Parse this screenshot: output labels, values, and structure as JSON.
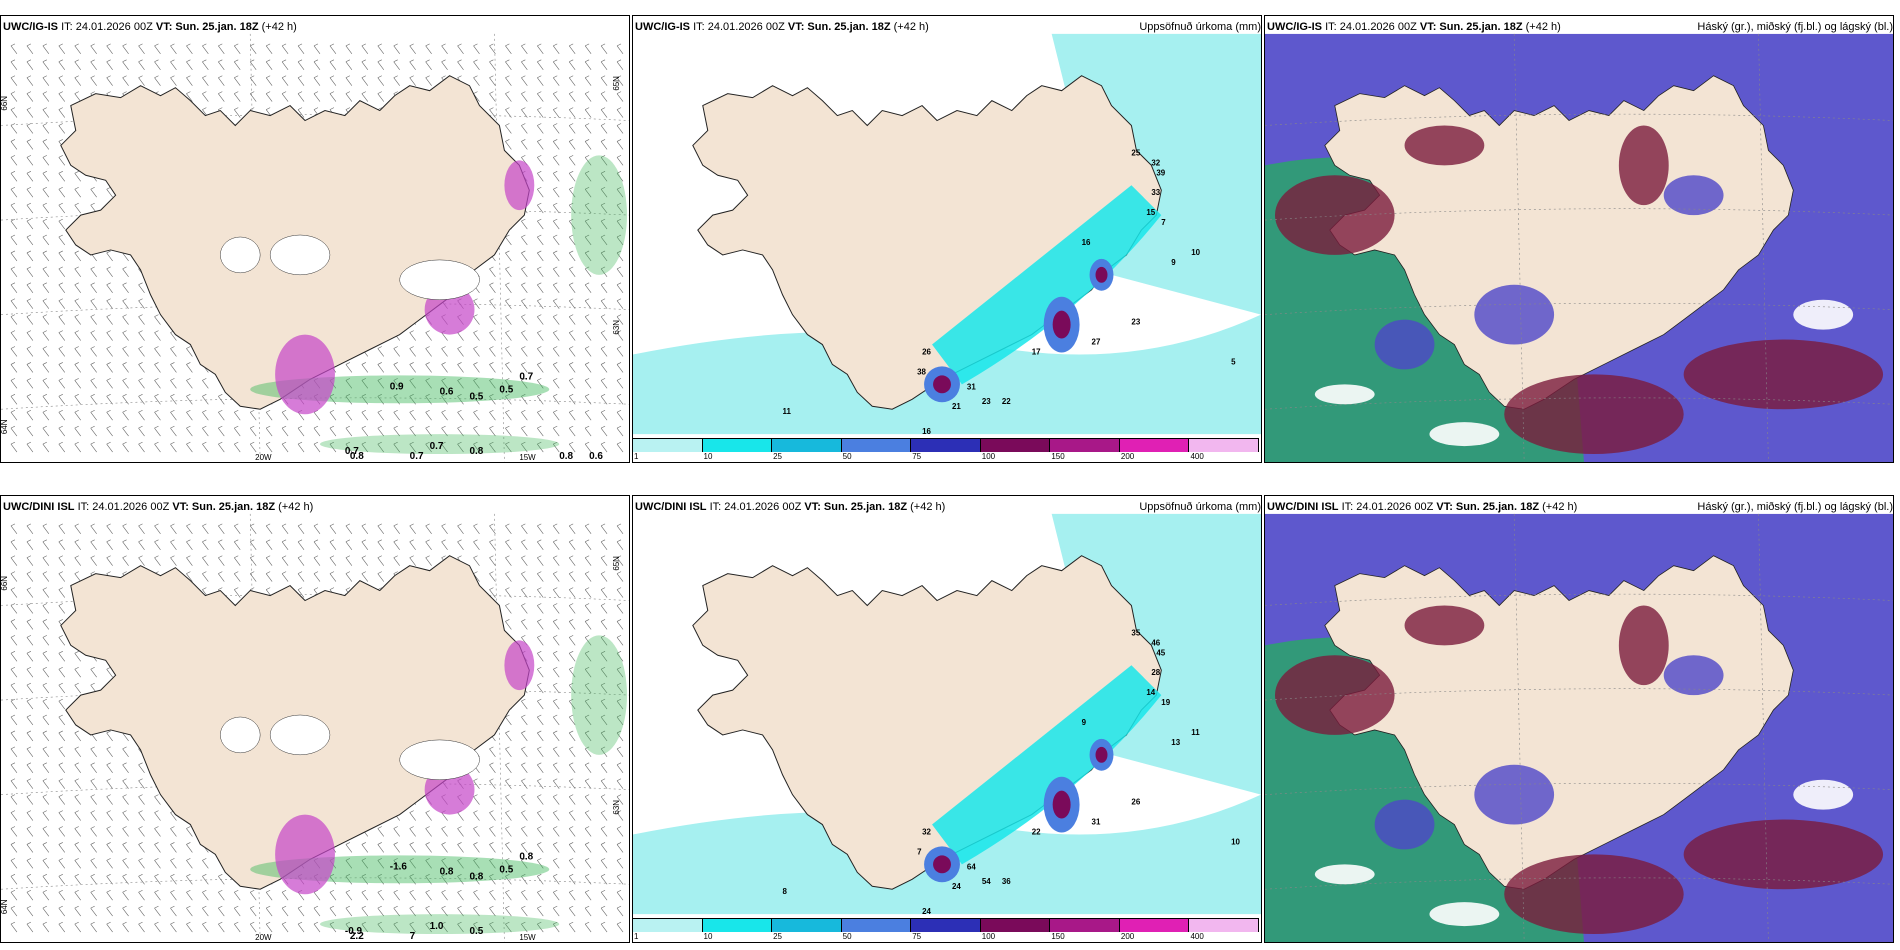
{
  "panels": [
    {
      "id": "p1",
      "model": "UWC/IG-IS",
      "it": "IT: 24.01.2026 00Z",
      "vt": "VT: Sun. 25.jan. 18Z",
      "lead": "(+42 h)",
      "right": "",
      "type": "wind",
      "lat_labels": [
        "66N",
        "64N",
        "65N",
        "63N"
      ],
      "lon_labels": [
        "20W",
        "15W"
      ],
      "values": [
        "0.9",
        "0.6",
        "0.5",
        "0.5",
        "0.7",
        "0.7",
        "0.7",
        "0.8",
        "0.8",
        "0.7",
        "0.8",
        "0.6"
      ]
    },
    {
      "id": "p2",
      "model": "UWC/IG-IS",
      "it": "IT: 24.01.2026 00Z",
      "vt": "VT: Sun. 25.jan. 18Z",
      "lead": "(+42 h)",
      "right": "Uppsöfnuð úrkoma (mm)",
      "type": "precip",
      "values": [
        "26",
        "31",
        "17",
        "27",
        "23",
        "16",
        "21",
        "23",
        "22",
        "25",
        "32",
        "39",
        "33",
        "15",
        "7",
        "10",
        "9",
        "5",
        "11",
        "16",
        "38"
      ]
    },
    {
      "id": "p3",
      "model": "UWC/IG-IS",
      "it": "IT: 24.01.2026 00Z",
      "vt": "VT: Sun. 25.jan. 18Z",
      "lead": "(+42 h)",
      "right": "Háský (gr.), miðský (fj.bl.) og lágský (bl.)",
      "type": "cloud"
    },
    {
      "id": "p4",
      "model": "UWC/DINI ISL",
      "it": "IT: 24.01.2026 00Z",
      "vt": "VT: Sun. 25.jan. 18Z",
      "lead": "(+42 h)",
      "right": "",
      "type": "wind",
      "lat_labels": [
        "66N",
        "64N",
        "65N",
        "63N"
      ],
      "lon_labels": [
        "20W",
        "15W"
      ],
      "values": [
        "-1.6",
        "0.8",
        "0.8",
        "0.5",
        "0.8",
        "-0.9",
        "1.0",
        "0.5",
        "2.2",
        "7"
      ]
    },
    {
      "id": "p5",
      "model": "UWC/DINI ISL",
      "it": "IT: 24.01.2026 00Z",
      "vt": "VT: Sun. 25.jan. 18Z",
      "lead": "(+42 h)",
      "right": "Uppsöfnuð úrkoma (mm)",
      "type": "precip",
      "values": [
        "32",
        "64",
        "22",
        "31",
        "26",
        "24",
        "24",
        "54",
        "36",
        "35",
        "46",
        "45",
        "28",
        "14",
        "19",
        "11",
        "13",
        "10",
        "8",
        "9",
        "7"
      ]
    },
    {
      "id": "p6",
      "model": "UWC/DINI ISL",
      "it": "IT: 24.01.2026 00Z",
      "vt": "VT: Sun. 25.jan. 18Z",
      "lead": "(+42 h)",
      "right": "Háský (gr.), miðský (fj.bl.) og lágský (bl.)",
      "type": "cloud"
    }
  ],
  "colorbar": {
    "labels": [
      "1",
      "10",
      "25",
      "50",
      "75",
      "100",
      "150",
      "200",
      "400"
    ],
    "colors": [
      "#b9f2f2",
      "#18e6ea",
      "#17b9dc",
      "#4b7fe0",
      "#2c2fb6",
      "#7a0a5a",
      "#a81888",
      "#e020b4",
      "#f2b7ef"
    ]
  },
  "colors": {
    "land": "#f3e4d4",
    "sea_precip": "#a6f0f0",
    "cloud_high": "#7a1c3c",
    "cloud_mid": "#2aa56a",
    "cloud_low": "#4d46c8",
    "wind_green": "#3fb75a",
    "wind_purple": "#c545c8"
  }
}
